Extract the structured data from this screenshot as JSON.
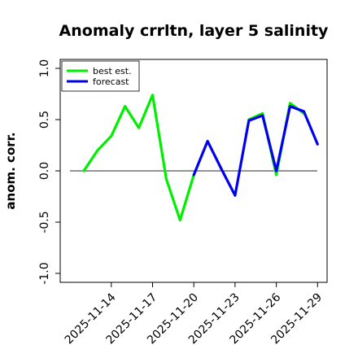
{
  "chart_data": {
    "type": "line",
    "title": "Anomaly crrltn, layer 5 salinity",
    "ylabel": "anom. corr.",
    "xlabel": "",
    "ylim": [
      -1.0,
      1.0
    ],
    "yticks": [
      "-1.0",
      "-0.5",
      "0.0",
      "0.5",
      "1.0"
    ],
    "xtick_labels": [
      "2025-11-14",
      "2025-11-17",
      "2025-11-20",
      "2025-11-23",
      "2025-11-26",
      "2025-11-29"
    ],
    "highlight_tick": "2025-11-20",
    "highlight_color": "#228b22",
    "x": [
      "2025-11-12",
      "2025-11-13",
      "2025-11-14",
      "2025-11-15",
      "2025-11-16",
      "2025-11-17",
      "2025-11-18",
      "2025-11-19",
      "2025-11-20",
      "2025-11-21",
      "2025-11-22",
      "2025-11-23",
      "2025-11-24",
      "2025-11-25",
      "2025-11-26",
      "2025-11-27",
      "2025-11-28",
      "2025-11-29"
    ],
    "zero_line": true,
    "legend_position": "top-left",
    "series": [
      {
        "name": "best est.",
        "color": "#00ee00",
        "values": [
          0.0,
          0.2,
          0.34,
          0.63,
          0.42,
          0.74,
          -0.08,
          -0.48,
          -0.04,
          null,
          null,
          null,
          0.5,
          0.56,
          -0.04,
          0.66,
          0.56,
          null
        ]
      },
      {
        "name": "forecast",
        "color": "#0000ee",
        "values": [
          null,
          null,
          null,
          null,
          null,
          null,
          null,
          null,
          -0.04,
          0.29,
          0.02,
          -0.24,
          0.49,
          0.54,
          0.0,
          0.63,
          0.58,
          0.26
        ]
      }
    ]
  }
}
